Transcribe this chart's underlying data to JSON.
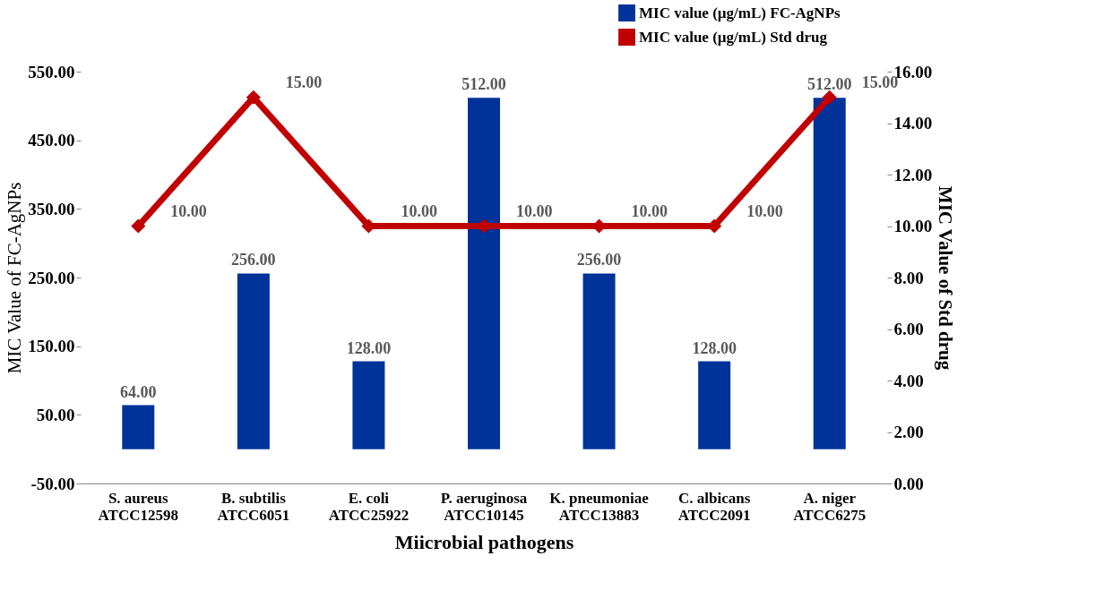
{
  "chart_data": {
    "type": "bar",
    "categories": [
      "S. aureus\nATCC12598",
      "B. subtilis\nATCC6051",
      "E. coli\nATCC25922",
      "P. aeruginosa\nATCC10145",
      "K. pneumoniae\nATCC13883",
      "C. albicans\nATCC2091",
      "A. niger\nATCC6275"
    ],
    "series": [
      {
        "name": "MIC value (µg/mL) FC-AgNPs",
        "color": "#003399",
        "values": [
          64,
          256,
          128,
          512,
          256,
          128,
          512
        ],
        "value_labels": [
          "64.00",
          "256.00",
          "128.00",
          "512.00",
          "256.00",
          "128.00",
          "512.00"
        ]
      },
      {
        "name": "MIC value (µg/mL) Std drug",
        "type": "line",
        "axis": "y2",
        "marker": "diamond",
        "color": "#c00000",
        "values": [
          10,
          15,
          10,
          10,
          10,
          10,
          15
        ],
        "value_labels": [
          "10.00",
          "15.00",
          "10.00",
          "10.00",
          "10.00",
          "10.00",
          "15.00"
        ]
      }
    ],
    "xlabel": "Miicrobial pathogens",
    "ylabel": "MIC Value of FC-AgNPs",
    "y2label": "MIC Value of Std drug",
    "ylim": [
      -50,
      550
    ],
    "yticks": [
      {
        "value": -50,
        "label": "-50.00"
      },
      {
        "value": 50,
        "label": "50.00"
      },
      {
        "value": 150,
        "label": "150.00"
      },
      {
        "value": 250,
        "label": "250.00"
      },
      {
        "value": 350,
        "label": "350.00"
      },
      {
        "value": 450,
        "label": "450.00"
      },
      {
        "value": 550,
        "label": "550.00"
      }
    ],
    "y2lim": [
      0,
      16
    ],
    "y2ticks": [
      {
        "value": 0,
        "label": "0.00"
      },
      {
        "value": 2,
        "label": "2.00"
      },
      {
        "value": 4,
        "label": "4.00"
      },
      {
        "value": 6,
        "label": "6.00"
      },
      {
        "value": 8,
        "label": "8.00"
      },
      {
        "value": 10,
        "label": "10.00"
      },
      {
        "value": 12,
        "label": "12.00"
      },
      {
        "value": 14,
        "label": "14.00"
      },
      {
        "value": 16,
        "label": "16.00"
      }
    ],
    "legend": "top right"
  }
}
